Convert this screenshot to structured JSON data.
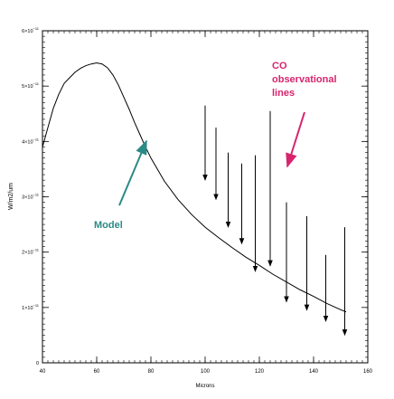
{
  "chart_data": {
    "type": "line",
    "title": "",
    "xlabel": "Microns",
    "ylabel": "W/m2/um",
    "xlim": [
      40,
      160
    ],
    "ylim": [
      0,
      6e-11
    ],
    "x_ticks": [
      {
        "value": 40,
        "label": "40"
      },
      {
        "value": 60,
        "label": "60"
      },
      {
        "value": 80,
        "label": "80"
      },
      {
        "value": 100,
        "label": "100"
      },
      {
        "value": 120,
        "label": "120"
      },
      {
        "value": 140,
        "label": "140"
      },
      {
        "value": 160,
        "label": "160"
      }
    ],
    "y_ticks": [
      {
        "value": 0,
        "mantissa": "0",
        "exponent": ""
      },
      {
        "value": 1e-11,
        "mantissa": "1×10",
        "exponent": "−11"
      },
      {
        "value": 2e-11,
        "mantissa": "2×10",
        "exponent": "−11"
      },
      {
        "value": 3e-11,
        "mantissa": "3×10",
        "exponent": "−11"
      },
      {
        "value": 4e-11,
        "mantissa": "4×10",
        "exponent": "−11"
      },
      {
        "value": 5e-11,
        "mantissa": "5×10",
        "exponent": "−11"
      },
      {
        "value": 6e-11,
        "mantissa": "6×10",
        "exponent": "−11"
      }
    ],
    "model_curve": {
      "x": [
        40,
        42,
        44,
        46,
        48,
        50,
        52,
        54,
        56,
        58,
        60,
        62,
        64,
        66,
        68,
        70,
        72,
        74,
        76,
        78,
        80,
        85,
        90,
        95,
        100,
        105,
        110,
        115,
        120,
        125,
        130,
        135,
        140,
        145,
        150,
        152
      ],
      "y": [
        3.9e-11,
        4.25e-11,
        4.6e-11,
        4.85e-11,
        5.05e-11,
        5.15e-11,
        5.25e-11,
        5.32e-11,
        5.37e-11,
        5.4e-11,
        5.42e-11,
        5.4e-11,
        5.33e-11,
        5.2e-11,
        5.02e-11,
        4.8e-11,
        4.58e-11,
        4.34e-11,
        4.12e-11,
        3.9e-11,
        3.7e-11,
        3.28e-11,
        2.95e-11,
        2.68e-11,
        2.45e-11,
        2.26e-11,
        2.08e-11,
        1.91e-11,
        1.76e-11,
        1.6e-11,
        1.46e-11,
        1.32e-11,
        1.2e-11,
        1.07e-11,
        9.6e-12,
        9.2e-12
      ]
    },
    "co_lines": [
      {
        "x": 100,
        "y_top": 4.65e-11,
        "y_bottom": 3.3e-11
      },
      {
        "x": 104,
        "y_top": 4.25e-11,
        "y_bottom": 2.95e-11
      },
      {
        "x": 108.5,
        "y_top": 3.8e-11,
        "y_bottom": 2.45e-11
      },
      {
        "x": 113.5,
        "y_top": 3.6e-11,
        "y_bottom": 2.15e-11
      },
      {
        "x": 118.5,
        "y_top": 3.75e-11,
        "y_bottom": 1.65e-11
      },
      {
        "x": 124,
        "y_top": 4.55e-11,
        "y_bottom": 1.75e-11
      },
      {
        "x": 130,
        "y_top": 2.9e-11,
        "y_bottom": 1.1e-11
      },
      {
        "x": 137.5,
        "y_top": 2.65e-11,
        "y_bottom": 9.5e-12
      },
      {
        "x": 144.5,
        "y_top": 1.95e-11,
        "y_bottom": 7.5e-12
      },
      {
        "x": 151.5,
        "y_top": 2.45e-11,
        "y_bottom": 5e-12
      }
    ],
    "annotations": [
      {
        "text_lines": [
          "Model"
        ],
        "color": "#2a8a86",
        "target": {
          "x": 78,
          "y": 3.95e-11
        }
      },
      {
        "text_lines": [
          "CO",
          "observational",
          "lines"
        ],
        "color": "#d8246e",
        "target": {
          "x": 129,
          "y": 3.4e-11
        }
      }
    ],
    "grid": false,
    "legend": "none",
    "colors": {
      "axis": "#000000",
      "curve": "#000000",
      "model_label": "#2a8a86",
      "co_label": "#d8246e"
    }
  }
}
